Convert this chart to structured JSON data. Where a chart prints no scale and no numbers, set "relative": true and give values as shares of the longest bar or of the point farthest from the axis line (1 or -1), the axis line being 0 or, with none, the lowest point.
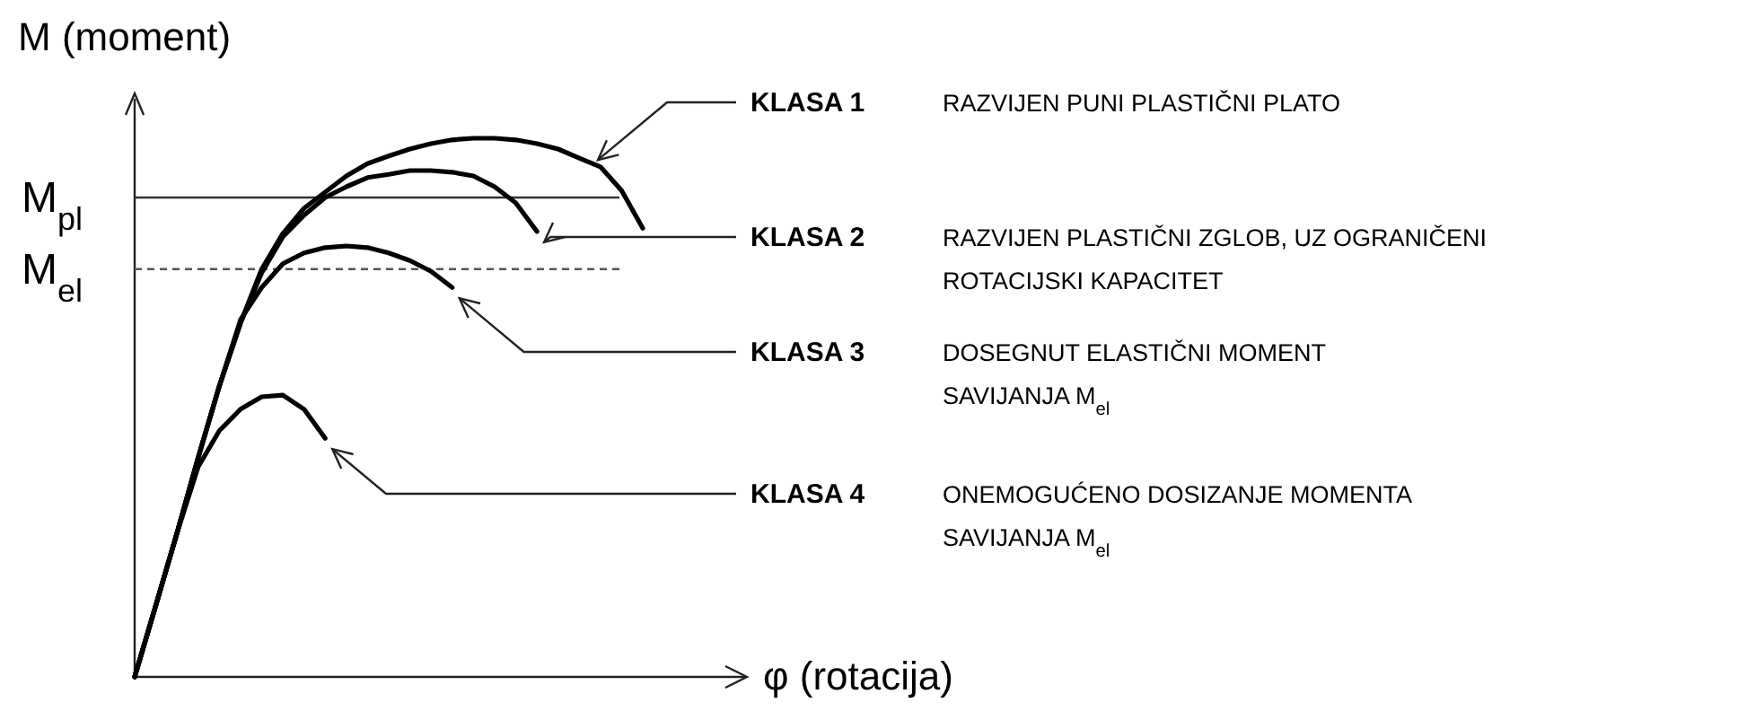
{
  "chart_data": {
    "type": "line",
    "relative": true,
    "xlabel": "φ (rotacija)",
    "ylabel": "M  (moment)",
    "categories": [
      null,
      null,
      null,
      null,
      null,
      null,
      null,
      null,
      null,
      null,
      null,
      null,
      null,
      null,
      null,
      null,
      null,
      null,
      null,
      null,
      null,
      null,
      null,
      null,
      null
    ],
    "series": [
      {
        "color": "#000000",
        "values": [
          0,
          0.133,
          0.267,
          0.407,
          0.54,
          0.657,
          0.757,
          0.823,
          0.87,
          0.9,
          0.93,
          0.953,
          0.967,
          0.98,
          0.99,
          0.997,
          1,
          1,
          0.997,
          0.99,
          0.98,
          0.963,
          0.947,
          0.903,
          0.833
        ]
      },
      {
        "color": "#000000",
        "values": [
          0,
          0.133,
          0.267,
          0.407,
          0.54,
          0.657,
          0.75,
          0.817,
          0.857,
          0.89,
          0.91,
          0.927,
          0.933,
          0.94,
          0.94,
          0.937,
          0.93,
          0.91,
          0.88,
          0.827,
          null,
          null,
          null,
          null,
          null
        ]
      },
      {
        "color": "#000000",
        "values": [
          0,
          0.133,
          0.267,
          0.407,
          0.54,
          0.663,
          0.723,
          0.767,
          0.787,
          0.797,
          0.8,
          0.797,
          0.787,
          0.773,
          0.753,
          0.723,
          null,
          null,
          null,
          null,
          null,
          null,
          null,
          null,
          null
        ]
      },
      {
        "color": "#000000",
        "values": [
          0,
          0.133,
          0.267,
          0.39,
          0.457,
          0.497,
          0.52,
          0.523,
          0.497,
          0.443,
          null,
          null,
          null,
          null,
          null,
          null,
          null,
          null,
          null,
          null,
          null,
          null,
          null,
          null,
          null
        ]
      }
    ],
    "ref_lines": [
      {
        "axis": "y",
        "value": 0.89,
        "label": "M$_{pl}$",
        "color": "#333333",
        "line_style": "solid"
      },
      {
        "axis": "y",
        "value": 0.757,
        "label": "M$_{el}$",
        "color": "#555555",
        "line_style": "dashed"
      }
    ],
    "annotations": [
      "KLASA 1 RAZVIJEN PUNI PLASTIČNI PLATO",
      "KLASA 2 RAZVIJEN PLASTIČNI ZGLOB, UZ OGRANIČENI\nROTACIJSKI KAPACITET",
      "KLASA 3 DOSEGNUT ELASTIČNI MOMENT\nSAVIJANJA M$_{el}$",
      "KLASA 4 ONEMOGUĆENO DOSIZANJE MOMENTA\nSAVIJANJA M$_{el}$"
    ]
  }
}
